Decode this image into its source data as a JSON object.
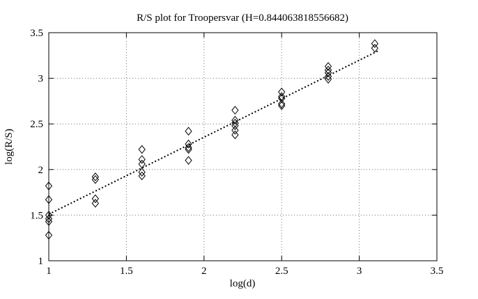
{
  "chart_data": {
    "type": "scatter",
    "title": "R/S plot for Troopersvar (H=0.844063818556682)",
    "xlabel": "log(d)",
    "ylabel": "log(R/S)",
    "xlim": [
      1,
      3.5
    ],
    "ylim": [
      1,
      3.5
    ],
    "xticks": [
      1,
      1.5,
      2,
      2.5,
      3,
      3.5
    ],
    "yticks": [
      1,
      1.5,
      2,
      2.5,
      3,
      3.5
    ],
    "xtick_labels": [
      "1",
      "1.5",
      "2",
      "2.5",
      "3",
      "3.5"
    ],
    "ytick_labels": [
      "1",
      "1.5",
      "2",
      "2.5",
      "3",
      "3.5"
    ],
    "grid": true,
    "legend": "none",
    "marker": "open-diamond",
    "marker_color": "#000000",
    "grid_color": "#6e6e6e",
    "fit_line": {
      "style": "dotted",
      "color": "#000000",
      "slope": 0.844063818556682,
      "intercept": 0.666,
      "x_start": 1.0,
      "x_end": 3.13
    },
    "points": [
      [
        1.0,
        1.82
      ],
      [
        1.0,
        1.67
      ],
      [
        1.0,
        1.5
      ],
      [
        1.0,
        1.46
      ],
      [
        1.0,
        1.43
      ],
      [
        1.0,
        1.28
      ],
      [
        1.3,
        1.92
      ],
      [
        1.3,
        1.89
      ],
      [
        1.3,
        1.68
      ],
      [
        1.3,
        1.63
      ],
      [
        1.6,
        2.22
      ],
      [
        1.6,
        2.11
      ],
      [
        1.6,
        2.06
      ],
      [
        1.6,
        1.97
      ],
      [
        1.6,
        1.93
      ],
      [
        1.9,
        2.42
      ],
      [
        1.9,
        2.28
      ],
      [
        1.9,
        2.24
      ],
      [
        1.9,
        2.22
      ],
      [
        1.9,
        2.1
      ],
      [
        2.2,
        2.65
      ],
      [
        2.2,
        2.54
      ],
      [
        2.2,
        2.51
      ],
      [
        2.2,
        2.48
      ],
      [
        2.2,
        2.43
      ],
      [
        2.2,
        2.38
      ],
      [
        2.5,
        2.85
      ],
      [
        2.5,
        2.8
      ],
      [
        2.5,
        2.78
      ],
      [
        2.5,
        2.72
      ],
      [
        2.5,
        2.7
      ],
      [
        2.8,
        3.13
      ],
      [
        2.8,
        3.09
      ],
      [
        2.8,
        3.06
      ],
      [
        2.8,
        3.02
      ],
      [
        2.8,
        2.99
      ],
      [
        3.1,
        3.38
      ],
      [
        3.1,
        3.33
      ]
    ]
  }
}
